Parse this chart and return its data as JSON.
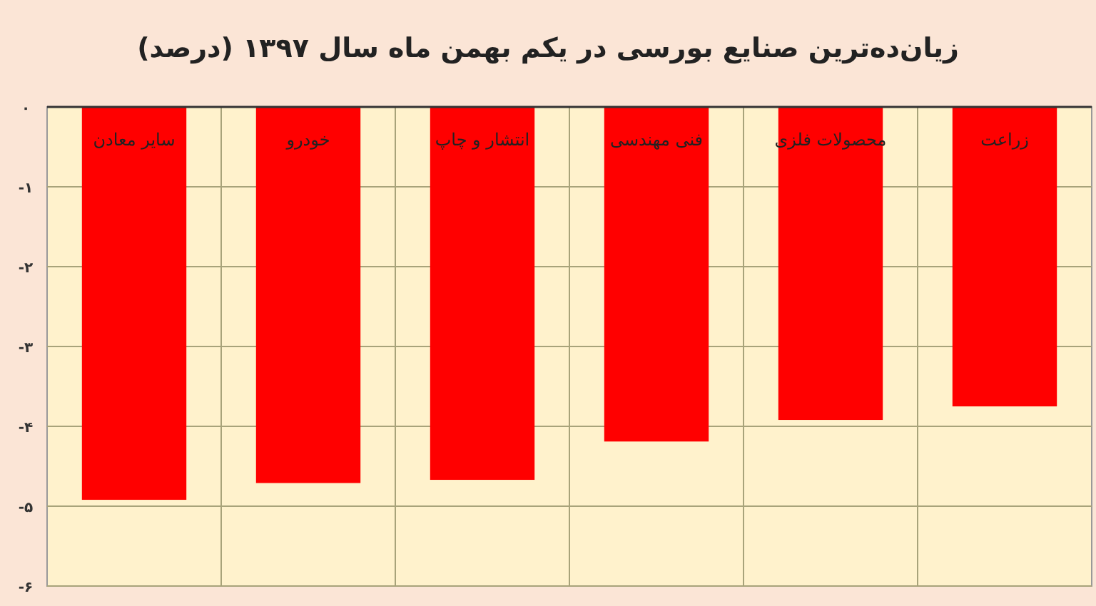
{
  "chart_data": {
    "type": "bar",
    "title": "زیان‌ده‌ترین صنایع بورسی در یکم بهمن ماه سال ۱۳۹۷ (درصد)",
    "categories": [
      "سایر معادن",
      "خودرو",
      "انتشار و چاپ",
      "فنی مهندسی",
      "محصولات فلزی",
      "زراعت"
    ],
    "values": [
      -4.92,
      -4.71,
      -4.67,
      -4.19,
      -3.92,
      -3.75
    ],
    "color": "#ff0000",
    "ylim": [
      -6,
      0
    ],
    "yticks": [
      {
        "value": 0,
        "label": "۰"
      },
      {
        "value": -1,
        "label": "-۱"
      },
      {
        "value": -2,
        "label": "-۲"
      },
      {
        "value": -3,
        "label": "-۳"
      },
      {
        "value": -4,
        "label": "-۴"
      },
      {
        "value": -5,
        "label": "-۵"
      },
      {
        "value": -6,
        "label": "-۶"
      }
    ],
    "grid": true
  }
}
